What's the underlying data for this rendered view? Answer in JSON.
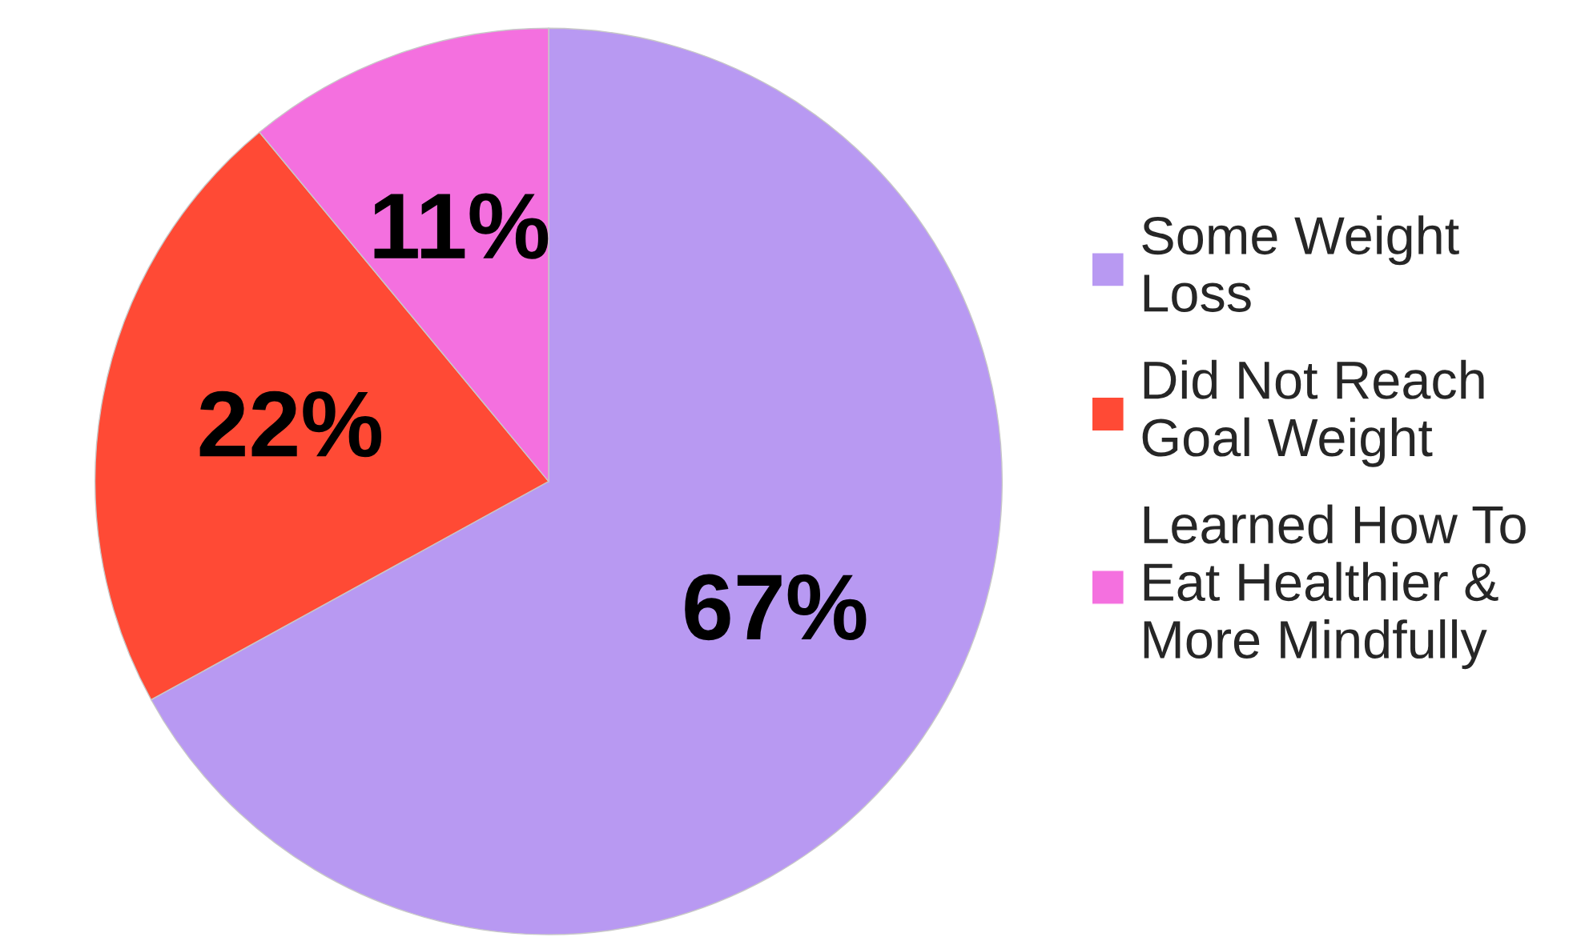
{
  "chart_data": {
    "type": "pie",
    "categories": [
      "Some Weight\nLoss",
      "Did Not Reach\nGoal Weight",
      "Learned How To\nEat Healthier &\nMore Mindfully"
    ],
    "values": [
      67,
      22,
      11
    ],
    "value_labels": [
      "67%",
      "22%",
      "11%"
    ],
    "colors": [
      "#b899f2",
      "#ff4a35",
      "#f470df"
    ],
    "legend": "right"
  }
}
